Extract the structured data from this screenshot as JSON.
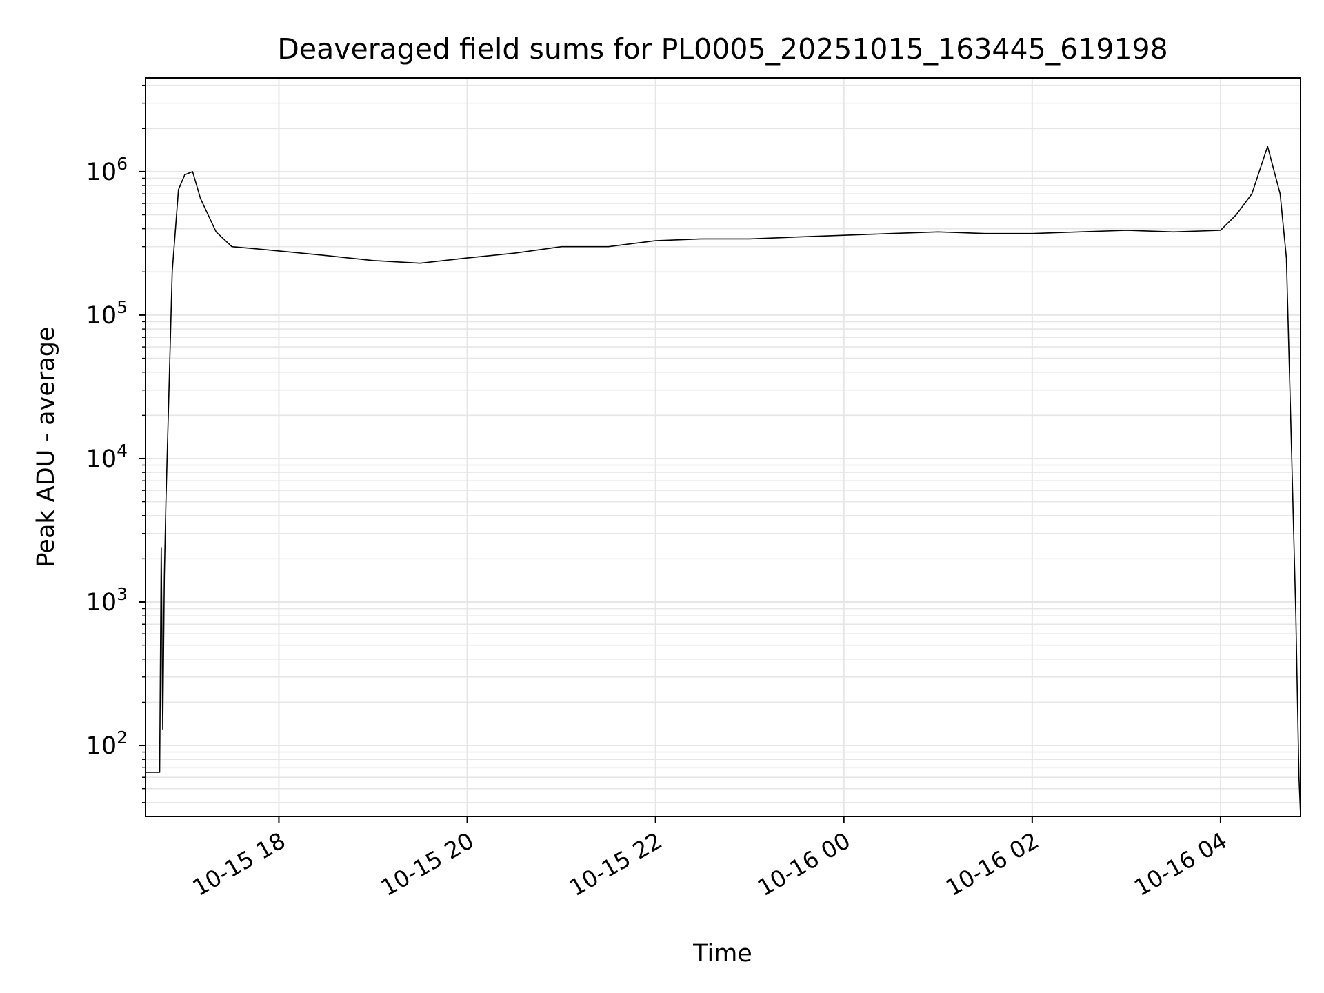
{
  "chart_data": {
    "type": "line",
    "title": "Deaveraged field sums for PL0005_20251015_163445_619198",
    "xlabel": "Time",
    "ylabel": "Peak ADU - average",
    "yscale": "log",
    "ylim": [
      32,
      4500000
    ],
    "xlim": [
      "2025-10-15 16:35",
      "2025-10-16 04:51"
    ],
    "grid": true,
    "line_color": "#000000",
    "grid_color": "#e6e6e6",
    "x_ticks": [
      {
        "value": "2025-10-15 18:00",
        "label": "10-15 18"
      },
      {
        "value": "2025-10-15 20:00",
        "label": "10-15 20"
      },
      {
        "value": "2025-10-15 22:00",
        "label": "10-15 22"
      },
      {
        "value": "2025-10-16 00:00",
        "label": "10-16 00"
      },
      {
        "value": "2025-10-16 02:00",
        "label": "10-16 02"
      },
      {
        "value": "2025-10-16 04:00",
        "label": "10-16 04"
      }
    ],
    "y_ticks": [
      {
        "value": 100,
        "base": "10",
        "exp": "2"
      },
      {
        "value": 1000,
        "base": "10",
        "exp": "3"
      },
      {
        "value": 10000,
        "base": "10",
        "exp": "4"
      },
      {
        "value": 100000,
        "base": "10",
        "exp": "5"
      },
      {
        "value": 1000000,
        "base": "10",
        "exp": "6"
      }
    ],
    "series": [
      {
        "x": [
          "2025-10-15 16:35",
          "2025-10-15 16:44",
          "2025-10-15 16:45",
          "2025-10-15 16:46",
          "2025-10-15 16:47",
          "2025-10-15 16:48",
          "2025-10-15 16:52",
          "2025-10-15 16:56",
          "2025-10-15 17:00",
          "2025-10-15 17:05",
          "2025-10-15 17:10",
          "2025-10-15 17:20",
          "2025-10-15 17:30",
          "2025-10-15 17:45",
          "2025-10-15 18:00",
          "2025-10-15 18:30",
          "2025-10-15 19:00",
          "2025-10-15 19:30",
          "2025-10-15 20:00",
          "2025-10-15 20:30",
          "2025-10-15 21:00",
          "2025-10-15 21:30",
          "2025-10-15 22:00",
          "2025-10-15 22:30",
          "2025-10-15 23:00",
          "2025-10-15 23:30",
          "2025-10-16 00:00",
          "2025-10-16 00:30",
          "2025-10-16 01:00",
          "2025-10-16 01:30",
          "2025-10-16 02:00",
          "2025-10-16 02:30",
          "2025-10-16 03:00",
          "2025-10-16 03:30",
          "2025-10-16 04:00",
          "2025-10-16 04:10",
          "2025-10-16 04:20",
          "2025-10-16 04:30",
          "2025-10-16 04:38",
          "2025-10-16 04:42",
          "2025-10-16 04:45",
          "2025-10-16 04:48",
          "2025-10-16 04:50",
          "2025-10-16 04:51"
        ],
        "y": [
          65,
          65,
          2400,
          130,
          1500,
          5000,
          200000,
          750000,
          950000,
          1000000,
          650000,
          380000,
          300000,
          290000,
          280000,
          260000,
          240000,
          230000,
          250000,
          270000,
          300000,
          300000,
          330000,
          340000,
          340000,
          350000,
          360000,
          370000,
          380000,
          370000,
          370000,
          380000,
          390000,
          380000,
          390000,
          500000,
          700000,
          1500000,
          700000,
          250000,
          15000,
          800,
          60,
          33
        ]
      }
    ]
  }
}
